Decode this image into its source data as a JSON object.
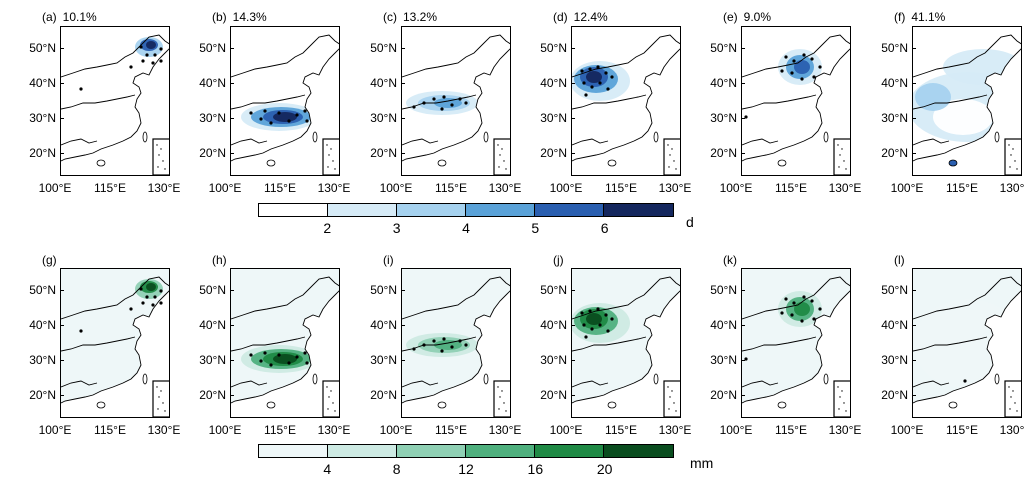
{
  "rows": [
    {
      "palette": "blue",
      "panels": [
        {
          "label": "(a)",
          "percent": "10.1%",
          "blob": "northeast"
        },
        {
          "label": "(b)",
          "percent": "14.3%",
          "blob": "yangtze"
        },
        {
          "label": "(c)",
          "percent": "13.2%",
          "blob": "central"
        },
        {
          "label": "(d)",
          "percent": "12.4%",
          "blob": "north"
        },
        {
          "label": "(e)",
          "percent": "9.0%",
          "blob": "northchina"
        },
        {
          "label": "(f)",
          "percent": "41.1%",
          "blob": "wide"
        }
      ],
      "colorbar": {
        "labels": [
          "2",
          "3",
          "4",
          "5",
          "6"
        ],
        "colors": [
          "#ffffff",
          "#d6ebf7",
          "#a6d2ef",
          "#5aa2d8",
          "#2a5fb0",
          "#14275e"
        ],
        "unit": "d"
      }
    },
    {
      "palette": "green",
      "panels": [
        {
          "label": "(g)",
          "percent": "",
          "blob": "northeast"
        },
        {
          "label": "(h)",
          "percent": "",
          "blob": "yangtze"
        },
        {
          "label": "(i)",
          "percent": "",
          "blob": "central"
        },
        {
          "label": "(j)",
          "percent": "",
          "blob": "north"
        },
        {
          "label": "(k)",
          "percent": "",
          "blob": "northchina"
        },
        {
          "label": "(l)",
          "percent": "",
          "blob": "faint"
        }
      ],
      "colorbar": {
        "labels": [
          "4",
          "8",
          "12",
          "16",
          "20"
        ],
        "colors": [
          "#eef7f8",
          "#cdeae3",
          "#8fd0b4",
          "#4fb07e",
          "#1f8a45",
          "#0a4d1f"
        ],
        "unit": "mm"
      }
    }
  ],
  "yticks": [
    "50°N",
    "40°N",
    "30°N",
    "20°N"
  ],
  "xticks": [
    "100°E",
    "115°E",
    "130°E"
  ]
}
